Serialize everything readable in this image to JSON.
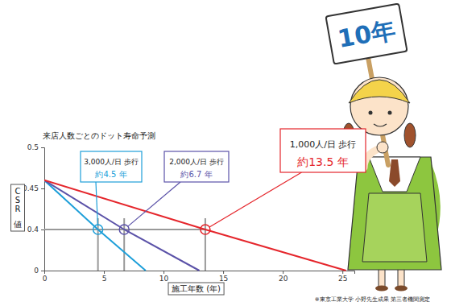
{
  "chart_data": {
    "type": "line",
    "title": "来店人数ごとのドット寿命予測",
    "x_label": "施工年数 (年)",
    "y_label": "C・S・R値",
    "footnote": "※東京工業大学 小野先生成果 第三者機関測定",
    "xlim": [
      0,
      26
    ],
    "xticks": [
      0,
      5,
      10,
      15,
      20,
      25
    ],
    "ylim": [
      0,
      0.5
    ],
    "yticks": [
      0,
      0.4,
      0.45,
      0.5
    ],
    "grid": false,
    "series": [
      {
        "name": "3,000人/日 歩行",
        "annotation": "約4.5 年",
        "color": "#1e9fd9",
        "x": [
          0,
          4.5,
          8.5
        ],
        "values": [
          0.46,
          0.4,
          0
        ]
      },
      {
        "name": "2,000人/日 歩行",
        "annotation": "約6.7 年",
        "color": "#5b52a8",
        "x": [
          0,
          6.7,
          13
        ],
        "values": [
          0.46,
          0.4,
          0
        ]
      },
      {
        "name": "1,000人/日 歩行",
        "annotation": "約13.5 年",
        "color": "#e5262c",
        "x": [
          0,
          13.5,
          25.3
        ],
        "values": [
          0.46,
          0.4,
          0
        ]
      }
    ]
  },
  "illustration": {
    "sign": "10年"
  }
}
